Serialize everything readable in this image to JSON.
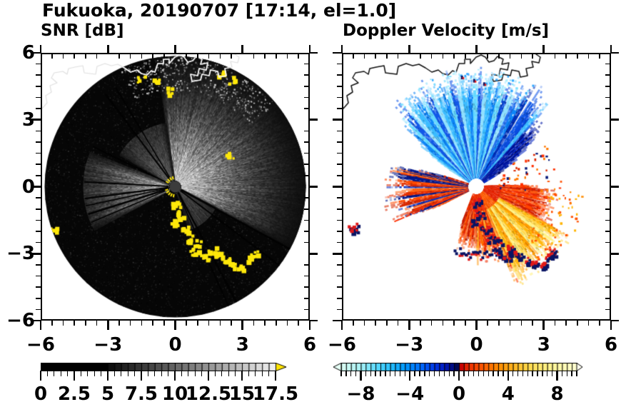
{
  "title": "Fukuoka, 20190707 [17:14, el=1.0]",
  "panels": [
    {
      "subtitle": "SNR [dB]"
    },
    {
      "subtitle": "Doppler Velocity [m/s]"
    }
  ],
  "axes": {
    "xlim": [
      -6,
      6
    ],
    "ylim": [
      -6,
      6
    ],
    "major_tick_values": [
      -6,
      -3,
      0,
      3,
      6
    ],
    "minor_step": 0.5,
    "x_tick_labels": [
      "−6",
      "−3",
      "0",
      "3",
      "6"
    ],
    "y_tick_labels": [
      "6",
      "3",
      "0",
      "−3",
      "−6"
    ]
  },
  "colorbars": [
    {
      "name": "snr",
      "range": [
        0,
        17.5
      ],
      "cell_step": 0.5,
      "tick_values": [
        0,
        2.5,
        5,
        7.5,
        10,
        12.5,
        15,
        17.5
      ],
      "tick_labels": [
        "0",
        "2.5",
        "5",
        "7.5",
        "10",
        "12.5",
        "15",
        "17.5"
      ],
      "black_until": 5,
      "ramp_from": "#000000",
      "ramp_to": "#f2f2f2",
      "over_color": "#ffe400"
    },
    {
      "name": "velocity",
      "range": [
        -9.6,
        9.6
      ],
      "cell_step": 0.4,
      "tick_values": [
        -8,
        -4,
        0,
        4,
        8
      ],
      "tick_labels": [
        "−8",
        "−4",
        "0",
        "4",
        "8"
      ],
      "under_color": "#e6fff6",
      "over_color": "#fffff2",
      "stops": [
        [
          -9.6,
          "#dcfcf2"
        ],
        [
          -8.0,
          "#a8f2f6"
        ],
        [
          -6.8,
          "#5cdcff"
        ],
        [
          -5.6,
          "#28c0ff"
        ],
        [
          -4.4,
          "#0098ff"
        ],
        [
          -3.2,
          "#0070ff"
        ],
        [
          -2.4,
          "#0048f0"
        ],
        [
          -1.6,
          "#0028d8"
        ],
        [
          -0.8,
          "#0010a0"
        ],
        [
          -0.15,
          "#000850"
        ],
        [
          0.15,
          "#c80000"
        ],
        [
          0.8,
          "#f03000"
        ],
        [
          2.0,
          "#ff5c00"
        ],
        [
          3.2,
          "#ff8c00"
        ],
        [
          4.4,
          "#ffb420"
        ],
        [
          5.6,
          "#ffd848"
        ],
        [
          6.8,
          "#ffec78"
        ],
        [
          8.0,
          "#fff8a4"
        ],
        [
          9.6,
          "#ffffd4"
        ]
      ]
    }
  ],
  "chart_data": {
    "type": "heatmap",
    "subtype": "dual_panel_radar_ppi",
    "site": "Fukuoka",
    "date": "20190707",
    "time": "17:14",
    "elevation_deg": 1.0,
    "axes_km": {
      "xlim": [
        -6,
        6
      ],
      "ylim": [
        -6,
        6
      ],
      "major_ticks": [
        -6,
        -3,
        0,
        3,
        6
      ],
      "minor_tick_km": 0.5
    },
    "scan_radius_km": 5.9,
    "panels": [
      {
        "variable": "SNR",
        "units": "dB",
        "colorbar_range": [
          0,
          17.5
        ],
        "features": {
          "bright_echo_sector_az_deg": [
            -8,
            118
          ],
          "west_echo_sector_az_deg": [
            242,
            292
          ],
          "dim_sector_nw_az_deg": [
            -60,
            -8
          ],
          "dim_sector_s_az_deg": [
            118,
            162
          ],
          "shadow_spoke_az_deg": [
            -37,
            -31,
            118.5,
            127,
            152,
            156,
            247,
            252.5,
            258,
            262.5,
            273,
            296
          ],
          "clutter_color": "#ffe80a",
          "clutter_note": "strong (>17.5 dB, yellow) ground clutter along coast chain SE of radar and near shoreline"
        }
      },
      {
        "variable": "Doppler Velocity",
        "units": "m/s",
        "colorbar_range": [
          -9.6,
          9.6
        ],
        "features": {
          "approaching_fan": {
            "az_deg": [
              -58,
              55
            ],
            "radius_km": [
              0.4,
              4.6
            ],
            "velocity_ms_range": [
              -8,
              -3
            ]
          },
          "navy_band": {
            "az_deg": [
              42,
              60
            ],
            "radius_km": [
              0.4,
              3.6
            ],
            "velocity_ms_range": [
              -2,
              -0.3
            ]
          },
          "receding_fan": {
            "az_deg": [
              90,
              200
            ],
            "radius_km": [
              0.4,
              4.4
            ],
            "velocity_ms_range": [
              1,
              8
            ]
          },
          "west_wedge": {
            "az_deg": [
              243,
              288
            ],
            "radius_km": [
              0.4,
              3.8
            ],
            "velocity_ms_range": [
              -2,
              3
            ]
          },
          "isolated_echo_km": [
            -5.55,
            -1.85
          ]
        }
      }
    ],
    "ground_clutter_chain_km": [
      [
        0.0,
        -0.7
      ],
      [
        0.15,
        -1.2
      ],
      [
        -0.05,
        -1.6
      ],
      [
        0.35,
        -1.9
      ],
      [
        0.55,
        -2.3
      ],
      [
        0.95,
        -2.5
      ],
      [
        0.8,
        -2.9
      ],
      [
        1.3,
        -3.1
      ],
      [
        1.6,
        -2.8
      ],
      [
        1.9,
        -3.05
      ],
      [
        2.3,
        -3.3
      ],
      [
        2.6,
        -3.5
      ],
      [
        2.95,
        -3.55
      ],
      [
        3.3,
        -3.2
      ],
      [
        3.5,
        -3.0
      ]
    ],
    "clutter_spots_km": [
      [
        -5.55,
        -1.85
      ],
      [
        2.4,
        1.45
      ],
      [
        -1.55,
        4.9
      ],
      [
        -0.9,
        4.75
      ],
      [
        -0.35,
        4.35
      ],
      [
        2.0,
        5.1
      ],
      [
        2.5,
        4.85
      ]
    ],
    "coast_echo_dots_km": [
      [
        -0.7,
        5.0
      ],
      [
        -0.15,
        4.85
      ],
      [
        0.3,
        4.7
      ]
    ],
    "coastline_note": "black coastline with harbor structures across northern part of both panels"
  }
}
